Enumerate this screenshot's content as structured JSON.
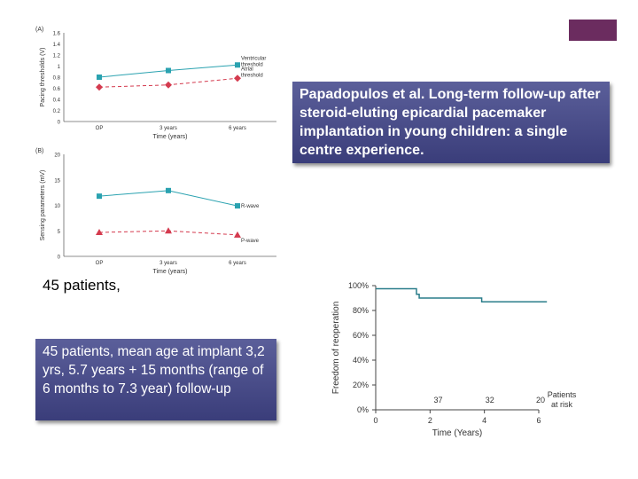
{
  "title_text": "Papadopulos et al. Long-term follow-up after steroid-eluting epicardial pacemaker implantation in young children: a single centre experience.",
  "patients_label": "45 patients,",
  "info_text": "45 patients, mean age at implant 3,2 yrs,  5.7 years + 15 months (range of 6 months to 7.3 year) follow-up",
  "colors": {
    "accent": "#6b2c5f",
    "teal": "#2aa2b0",
    "red": "#d43a4e",
    "box": "#44487f"
  },
  "chart_data": [
    {
      "panel": "(A)",
      "type": "line",
      "categories": [
        "OP",
        "3 years",
        "6 years"
      ],
      "xlabel": "Time (years)",
      "ylabel": "Pacing thresholds (V)",
      "yticks": [
        "0",
        "0.2",
        "0.4",
        "0.6",
        "0.8",
        "1",
        "1.2",
        "1.4",
        "1.6"
      ],
      "ylim": [
        0,
        1.6
      ],
      "series": [
        {
          "name": "Ventricular threshold",
          "name_lines": [
            "Ventricular",
            "threshold"
          ],
          "values": [
            0.8,
            0.92,
            1.02
          ],
          "color": "#2aa2b0",
          "marker": "square",
          "dash": ""
        },
        {
          "name": "Atrial threshold",
          "name_lines": [
            "Atrial",
            "threshold"
          ],
          "values": [
            0.62,
            0.66,
            0.78
          ],
          "color": "#d43a4e",
          "marker": "diamond",
          "dash": "4,3"
        }
      ]
    },
    {
      "panel": "(B)",
      "type": "line",
      "categories": [
        "OP",
        "3 years",
        "6 years"
      ],
      "xlabel": "Time (years)",
      "ylabel": "Sensing parameters (mV)",
      "yticks": [
        "0",
        "5",
        "10",
        "15",
        "20"
      ],
      "ylim": [
        0,
        20
      ],
      "series": [
        {
          "name": "R-wave",
          "name_lines": [
            "R-wave"
          ],
          "values": [
            11.8,
            12.9,
            9.9
          ],
          "color": "#2aa2b0",
          "marker": "square",
          "dash": ""
        },
        {
          "name": "P-wave",
          "name_lines": [
            "P-wave"
          ],
          "values": [
            4.7,
            5.0,
            4.2
          ],
          "color": "#d43a4e",
          "marker": "triangle",
          "dash": "4,3"
        }
      ]
    },
    {
      "type": "line",
      "subtype": "kaplan-meier",
      "xlabel": "Time (Years)",
      "ylabel": "Freedom of reoperation",
      "xticks": [
        "0",
        "2",
        "4",
        "6"
      ],
      "xlim": [
        0,
        6
      ],
      "yticks": [
        "0%",
        "20%",
        "40%",
        "60%",
        "80%",
        "100%"
      ],
      "ylim": [
        0,
        100
      ],
      "series": [
        {
          "values": [
            [
              0,
              97.5
            ],
            [
              1.5,
              97.5
            ],
            [
              1.5,
              93
            ],
            [
              1.6,
              93
            ],
            [
              1.6,
              90
            ],
            [
              3.9,
              90
            ],
            [
              3.9,
              87
            ],
            [
              6.3,
              87
            ]
          ],
          "color": "#2a7d8a"
        }
      ],
      "at_risk_label": [
        "Patients",
        "at risk"
      ],
      "at_risk": [
        {
          "x": 2.3,
          "n": "37"
        },
        {
          "x": 4.2,
          "n": "32"
        },
        {
          "x": 6,
          "n": "20"
        }
      ]
    }
  ]
}
